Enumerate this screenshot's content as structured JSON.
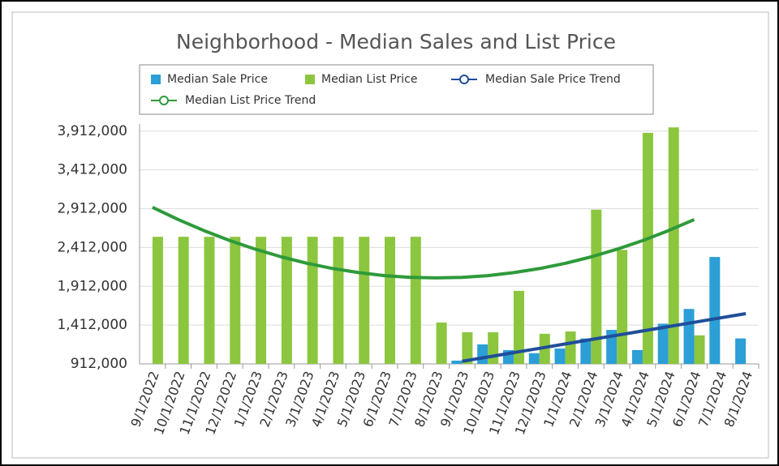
{
  "chart_data": {
    "type": "bar",
    "title": "Neighborhood - Median Sales and List Price",
    "categories": [
      "9/1/2022",
      "10/1/2022",
      "11/1/2022",
      "12/1/2022",
      "1/1/2023",
      "2/1/2023",
      "3/1/2023",
      "4/1/2023",
      "5/1/2023",
      "6/1/2023",
      "7/1/2023",
      "8/1/2023",
      "9/1/2023",
      "10/1/2023",
      "11/1/2023",
      "12/1/2023",
      "1/1/2024",
      "2/1/2024",
      "3/1/2024",
      "4/1/2024",
      "5/1/2024",
      "6/1/2024",
      "7/1/2024",
      "8/1/2024"
    ],
    "series": [
      {
        "name": "Median Sale Price",
        "type": "bar",
        "color": "#2b9fd6",
        "values": [
          null,
          null,
          null,
          null,
          null,
          null,
          null,
          null,
          null,
          null,
          null,
          null,
          954000,
          1163000,
          1090000,
          1050000,
          1110000,
          1240000,
          1350000,
          1090000,
          1430000,
          1620000,
          2290000,
          1240000
        ]
      },
      {
        "name": "Median List Price",
        "type": "bar",
        "color": "#8cc63f",
        "values": [
          2550000,
          2550000,
          2550000,
          2550000,
          2550000,
          2550000,
          2550000,
          2550000,
          2550000,
          2550000,
          2550000,
          1445000,
          1320000,
          1320000,
          1853000,
          1300000,
          1330000,
          2900000,
          2380000,
          3890000,
          3960000,
          1280000,
          null,
          null
        ]
      },
      {
        "name": "Median Sale Price Trend",
        "type": "line",
        "color": "#1f4e9a",
        "values": [
          null,
          null,
          null,
          null,
          null,
          null,
          null,
          null,
          null,
          null,
          null,
          null,
          945000,
          1001000,
          1057000,
          1113000,
          1169000,
          1225000,
          1281000,
          1336000,
          1392000,
          1448000,
          1504000,
          1560000
        ]
      },
      {
        "name": "Median List Price Trend",
        "type": "line",
        "color": "#2e9a3a",
        "values": [
          2930000,
          2772000,
          2629000,
          2501000,
          2389000,
          2291000,
          2208000,
          2140000,
          2088000,
          2050000,
          2028000,
          2020000,
          2028000,
          2050000,
          2088000,
          2140000,
          2208000,
          2291000,
          2389000,
          2501000,
          2629000,
          2772000,
          null,
          null
        ]
      }
    ],
    "ylim": [
      912000,
      3962000
    ],
    "yticks": [
      {
        "value": 912000,
        "label": "912,000"
      },
      {
        "value": 1412000,
        "label": "1,412,000"
      },
      {
        "value": 1912000,
        "label": "1,912,000"
      },
      {
        "value": 2412000,
        "label": "2,412,000"
      },
      {
        "value": 2912000,
        "label": "2,912,000"
      },
      {
        "value": 3412000,
        "label": "3,412,000"
      },
      {
        "value": 3912000,
        "label": "3,912,000"
      }
    ],
    "grid": true
  }
}
